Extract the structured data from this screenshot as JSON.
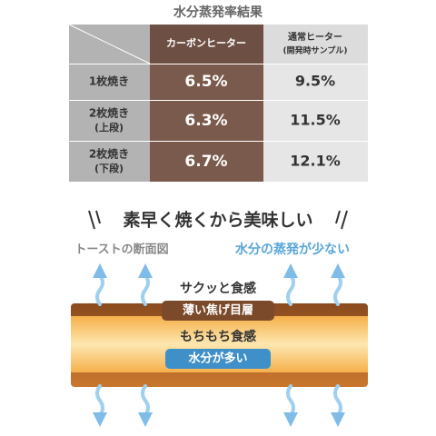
{
  "title": "水分蒸発率結果",
  "table": {
    "headers": [
      [
        "カーボンヒーター"
      ],
      [
        "通常ヒーター",
        "(開発時サンプル)"
      ]
    ],
    "rows": [
      [
        [
          "1枚焼き"
        ],
        "6.5%",
        "9.5%"
      ],
      [
        [
          "2枚焼き",
          "(上段)"
        ],
        "6.3%",
        "11.5%"
      ],
      [
        [
          "2枚焼き",
          "(下段)"
        ],
        "6.7%",
        "12.1%"
      ]
    ]
  },
  "diagram": {
    "headline": "素早く焼くから美味しい",
    "left_label": "トーストの断面図",
    "right_label": "水分の蒸発が少ない",
    "crust_text": "サクッと食感",
    "crust_badge": "薄い焦げ目層",
    "inner_text": "もちもち食感",
    "inner_badge": "水分が多い"
  }
}
